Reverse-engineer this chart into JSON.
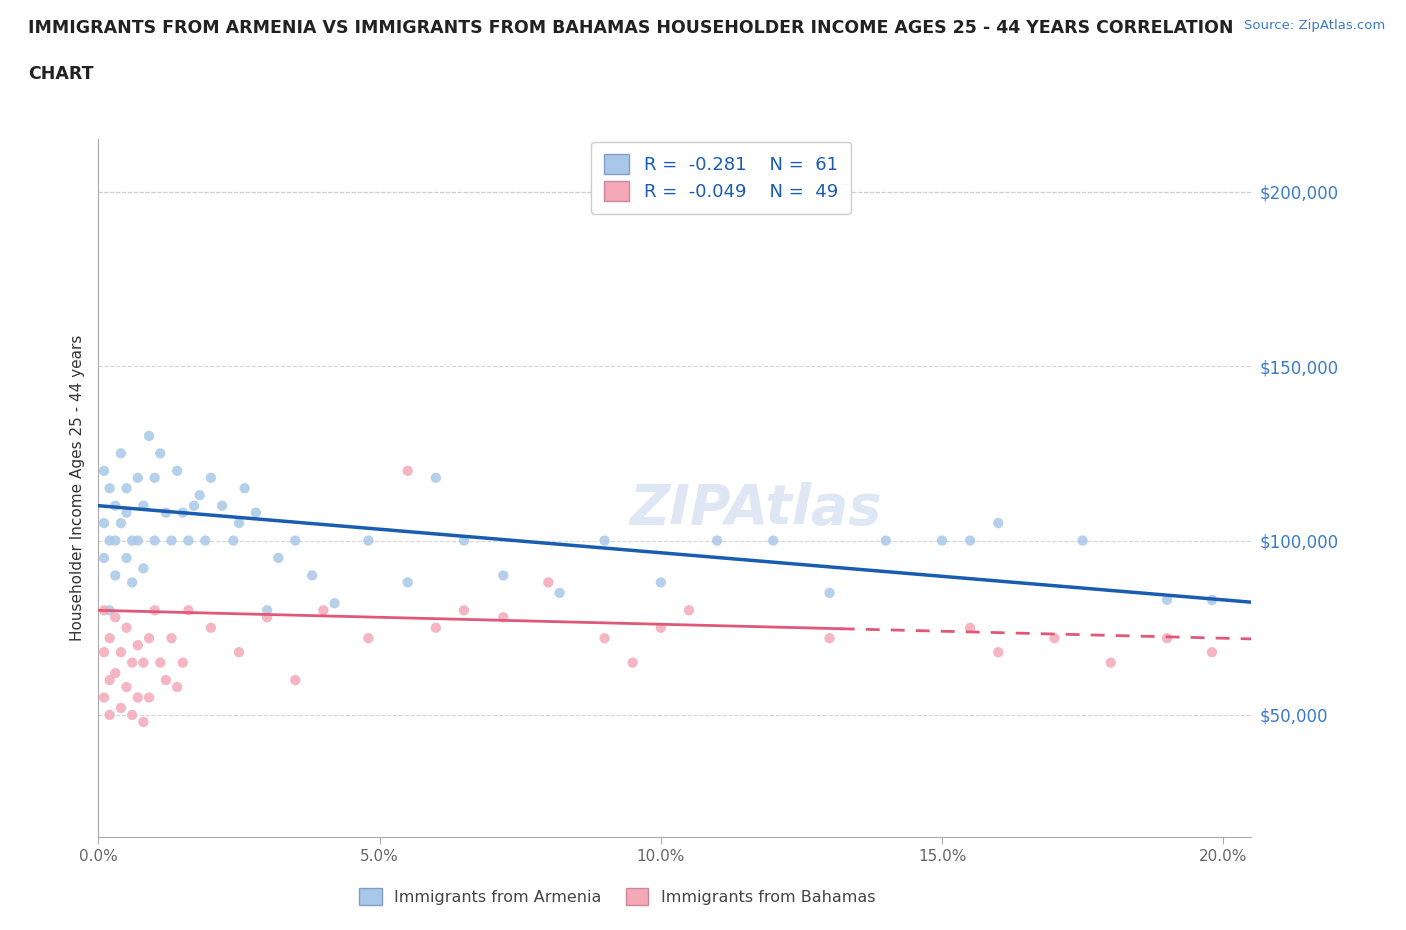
{
  "title_line1": "IMMIGRANTS FROM ARMENIA VS IMMIGRANTS FROM BAHAMAS HOUSEHOLDER INCOME AGES 25 - 44 YEARS CORRELATION",
  "title_line2": "CHART",
  "source_text": "Source: ZipAtlas.com",
  "ylabel": "Householder Income Ages 25 - 44 years",
  "xlim": [
    0.0,
    0.205
  ],
  "ylim": [
    15000,
    215000
  ],
  "yticks": [
    50000,
    100000,
    150000,
    200000
  ],
  "ytick_labels": [
    "$50,000",
    "$100,000",
    "$150,000",
    "$200,000"
  ],
  "xticks": [
    0.0,
    0.05,
    0.1,
    0.15,
    0.2
  ],
  "xtick_labels": [
    "0.0%",
    "5.0%",
    "10.0%",
    "15.0%",
    "20.0%"
  ],
  "armenia_color": "#a8c8e8",
  "bahamas_color": "#f4a8b8",
  "armenia_line_color": "#1a5cb0",
  "bahamas_line_color": "#e05878",
  "R_armenia": -0.281,
  "N_armenia": 61,
  "R_bahamas": -0.049,
  "N_bahamas": 49,
  "watermark_text": "ZIPAtlas",
  "watermark_color": "#c8d8ec",
  "armenia_x": [
    0.001,
    0.001,
    0.001,
    0.002,
    0.002,
    0.002,
    0.003,
    0.003,
    0.003,
    0.004,
    0.004,
    0.005,
    0.005,
    0.005,
    0.006,
    0.006,
    0.007,
    0.007,
    0.008,
    0.008,
    0.009,
    0.01,
    0.01,
    0.011,
    0.012,
    0.013,
    0.014,
    0.015,
    0.016,
    0.017,
    0.018,
    0.019,
    0.02,
    0.022,
    0.024,
    0.025,
    0.026,
    0.028,
    0.03,
    0.032,
    0.035,
    0.038,
    0.042,
    0.048,
    0.055,
    0.06,
    0.065,
    0.072,
    0.082,
    0.09,
    0.1,
    0.11,
    0.12,
    0.13,
    0.14,
    0.15,
    0.155,
    0.16,
    0.175,
    0.19,
    0.198
  ],
  "armenia_y": [
    105000,
    120000,
    95000,
    115000,
    100000,
    80000,
    110000,
    90000,
    100000,
    125000,
    105000,
    108000,
    95000,
    115000,
    100000,
    88000,
    118000,
    100000,
    110000,
    92000,
    130000,
    100000,
    118000,
    125000,
    108000,
    100000,
    120000,
    108000,
    100000,
    110000,
    113000,
    100000,
    118000,
    110000,
    100000,
    105000,
    115000,
    108000,
    80000,
    95000,
    100000,
    90000,
    82000,
    100000,
    88000,
    118000,
    100000,
    90000,
    85000,
    100000,
    88000,
    100000,
    100000,
    85000,
    100000,
    100000,
    100000,
    105000,
    100000,
    83000,
    83000
  ],
  "bahamas_x": [
    0.001,
    0.001,
    0.001,
    0.002,
    0.002,
    0.002,
    0.003,
    0.003,
    0.004,
    0.004,
    0.005,
    0.005,
    0.006,
    0.006,
    0.007,
    0.007,
    0.008,
    0.008,
    0.009,
    0.009,
    0.01,
    0.011,
    0.012,
    0.013,
    0.014,
    0.015,
    0.016,
    0.02,
    0.025,
    0.03,
    0.035,
    0.04,
    0.048,
    0.055,
    0.06,
    0.065,
    0.072,
    0.08,
    0.09,
    0.095,
    0.1,
    0.105,
    0.13,
    0.155,
    0.16,
    0.17,
    0.18,
    0.19,
    0.198
  ],
  "bahamas_y": [
    80000,
    68000,
    55000,
    72000,
    60000,
    50000,
    78000,
    62000,
    68000,
    52000,
    75000,
    58000,
    65000,
    50000,
    70000,
    55000,
    65000,
    48000,
    72000,
    55000,
    80000,
    65000,
    60000,
    72000,
    58000,
    65000,
    80000,
    75000,
    68000,
    78000,
    60000,
    80000,
    72000,
    120000,
    75000,
    80000,
    78000,
    88000,
    72000,
    65000,
    75000,
    80000,
    72000,
    75000,
    68000,
    72000,
    65000,
    72000,
    68000
  ],
  "background_color": "#ffffff",
  "grid_color": "#cccccc",
  "yaxis_right_color": "#3a7bc8",
  "legend_text_color": "#1a5cb0"
}
